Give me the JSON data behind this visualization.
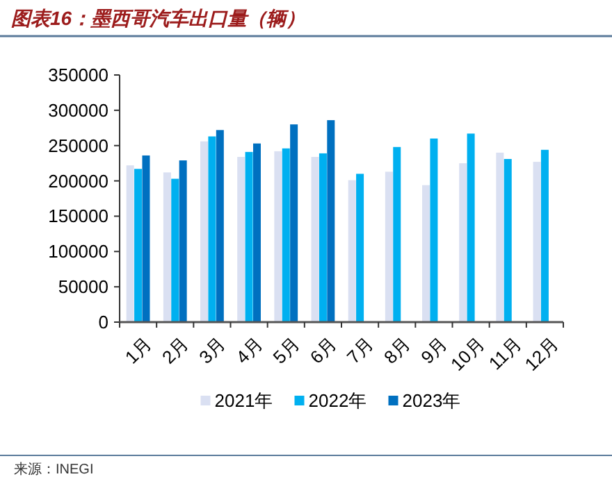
{
  "chart_data": {
    "type": "bar",
    "title": "图表16：墨西哥汽车出口量（辆）",
    "categories": [
      "1月",
      "2月",
      "3月",
      "4月",
      "5月",
      "6月",
      "7月",
      "8月",
      "9月",
      "10月",
      "11月",
      "12月"
    ],
    "series": [
      {
        "name": "2021年",
        "color": "#dae0f2",
        "values": [
          222000,
          212000,
          256000,
          234000,
          242000,
          234000,
          201000,
          213000,
          194000,
          225000,
          240000,
          227000
        ]
      },
      {
        "name": "2022年",
        "color": "#00b0f0",
        "values": [
          217000,
          203000,
          263000,
          241000,
          246000,
          239000,
          210000,
          248000,
          260000,
          267000,
          231000,
          244000
        ]
      },
      {
        "name": "2023年",
        "color": "#0070c0",
        "values": [
          236000,
          229000,
          272000,
          253000,
          280000,
          286000,
          null,
          null,
          null,
          null,
          null,
          null
        ]
      }
    ],
    "ylim": [
      0,
      350000
    ],
    "yticks": [
      0,
      50000,
      100000,
      150000,
      200000,
      250000,
      300000,
      350000
    ],
    "legend": "bottom",
    "grid": false,
    "annotations": [
      "来源：INEGI"
    ]
  }
}
